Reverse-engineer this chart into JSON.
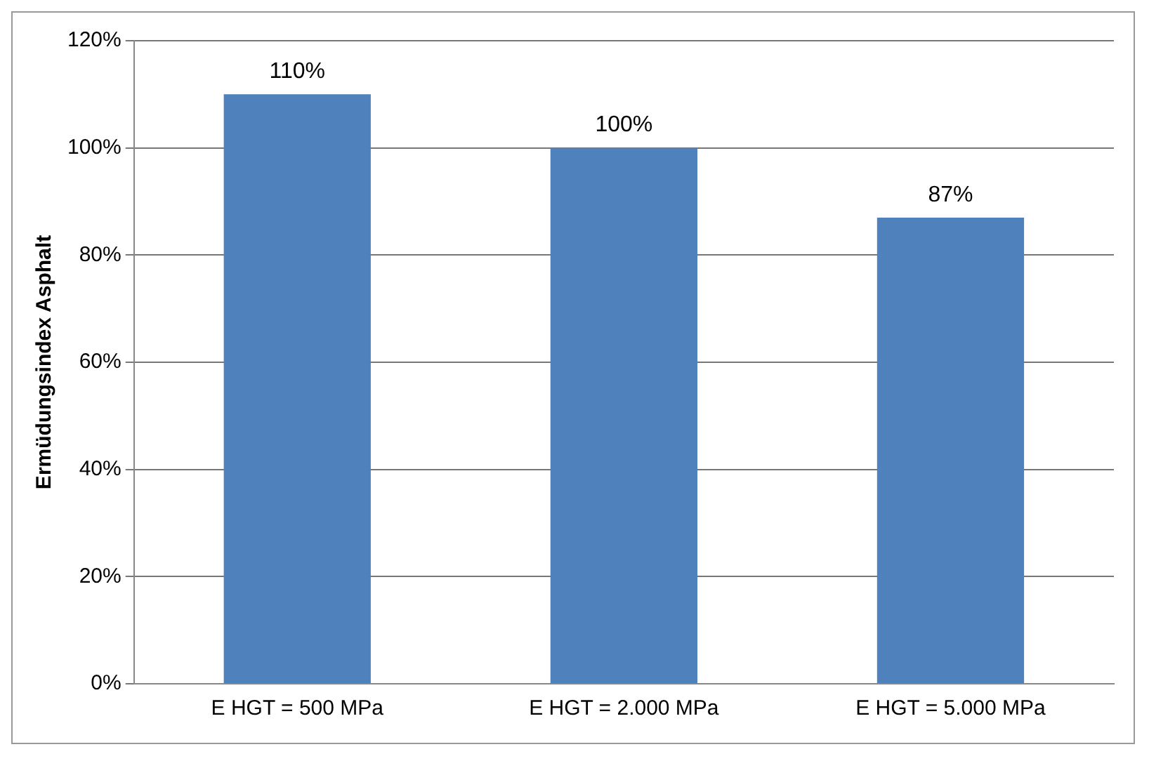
{
  "chart_data": {
    "type": "bar",
    "ylabel": "Ermüdungsindex Asphalt",
    "categories": [
      "E HGT = 500 MPa",
      "E HGT = 2.000 MPa",
      "E HGT = 5.000 MPa"
    ],
    "values": [
      110,
      100,
      87
    ],
    "value_labels": [
      "110%",
      "100%",
      "87%"
    ],
    "color": "#4f81bd",
    "ylim": [
      0,
      120
    ],
    "yticks": [
      {
        "value": 0,
        "label": "0%"
      },
      {
        "value": 20,
        "label": "20%"
      },
      {
        "value": 40,
        "label": "40%"
      },
      {
        "value": 60,
        "label": "60%"
      },
      {
        "value": 80,
        "label": "80%"
      },
      {
        "value": 100,
        "label": "100%"
      },
      {
        "value": 120,
        "label": "120%"
      }
    ],
    "grid": "y",
    "legend": false
  }
}
